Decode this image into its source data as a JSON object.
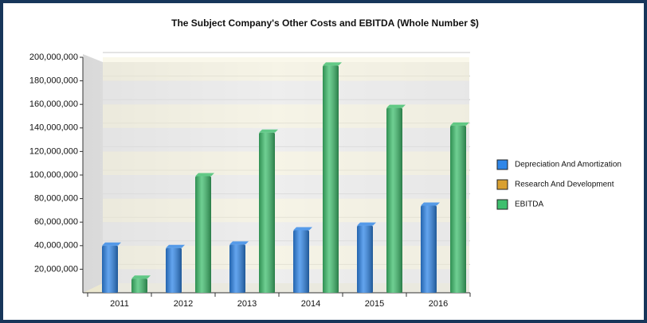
{
  "chart_data": {
    "type": "bar",
    "title": "The Subject Company's Other Costs and EBITDA (Whole Number $)",
    "categories": [
      "2011",
      "2012",
      "2013",
      "2014",
      "2015",
      "2016"
    ],
    "series": [
      {
        "name": "Depreciation And Amortization",
        "color": "#2f86e8",
        "values": [
          40000000,
          38000000,
          41000000,
          53000000,
          57000000,
          74000000
        ]
      },
      {
        "name": "Research And Development",
        "color": "#d9a031",
        "values": [
          0,
          0,
          0,
          0,
          0,
          0
        ]
      },
      {
        "name": "EBITDA",
        "color": "#3fbf6e",
        "values": [
          12000000,
          99000000,
          136000000,
          193000000,
          157000000,
          142000000
        ]
      }
    ],
    "ylim": [
      0,
      200000000
    ],
    "yticks": [
      {
        "value": 20000000,
        "label": "20,000,000"
      },
      {
        "value": 40000000,
        "label": "40,000,000"
      },
      {
        "value": 60000000,
        "label": "60,000,000"
      },
      {
        "value": 80000000,
        "label": "80,000,000"
      },
      {
        "value": 100000000,
        "label": "100,000,000"
      },
      {
        "value": 120000000,
        "label": "120,000,000"
      },
      {
        "value": 140000000,
        "label": "140,000,000"
      },
      {
        "value": 160000000,
        "label": "160,000,000"
      },
      {
        "value": 180000000,
        "label": "180,000,000"
      },
      {
        "value": 200000000,
        "label": "200,000,000"
      }
    ],
    "grid": true,
    "legend": "right"
  }
}
